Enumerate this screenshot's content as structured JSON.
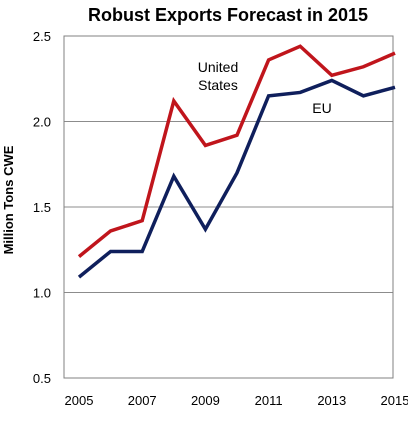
{
  "chart_data": {
    "type": "line",
    "title": "Robust Exports Forecast in 2015",
    "xlabel": "",
    "ylabel": "Million Tons CWE",
    "ylim": [
      0.5,
      2.5
    ],
    "yticks": [
      "0.5",
      "1.0",
      "1.5",
      "2.0",
      "2.5"
    ],
    "ytick_values": [
      0.5,
      1.0,
      1.5,
      2.0,
      2.5
    ],
    "xticks": [
      "2005",
      "2007",
      "2009",
      "2011",
      "2013",
      "2015"
    ],
    "xtick_values": [
      2005,
      2007,
      2009,
      2011,
      2013,
      2015
    ],
    "xlim": [
      2005,
      2015
    ],
    "grid": "horizontal",
    "x": [
      2005,
      2006,
      2007,
      2008,
      2009,
      2010,
      2011,
      2012,
      2013,
      2014,
      2015
    ],
    "series": [
      {
        "name": "United States",
        "label_lines": [
          "United",
          "States"
        ],
        "color": "#C0151C",
        "values": [
          1.21,
          1.36,
          1.42,
          2.12,
          1.86,
          1.92,
          2.36,
          2.44,
          2.27,
          2.32,
          2.4
        ]
      },
      {
        "name": "EU",
        "label_lines": [
          "EU"
        ],
        "color": "#0F1F5C",
        "values": [
          1.09,
          1.24,
          1.24,
          1.68,
          1.37,
          1.7,
          2.15,
          2.17,
          2.24,
          2.15,
          2.2
        ]
      }
    ]
  }
}
